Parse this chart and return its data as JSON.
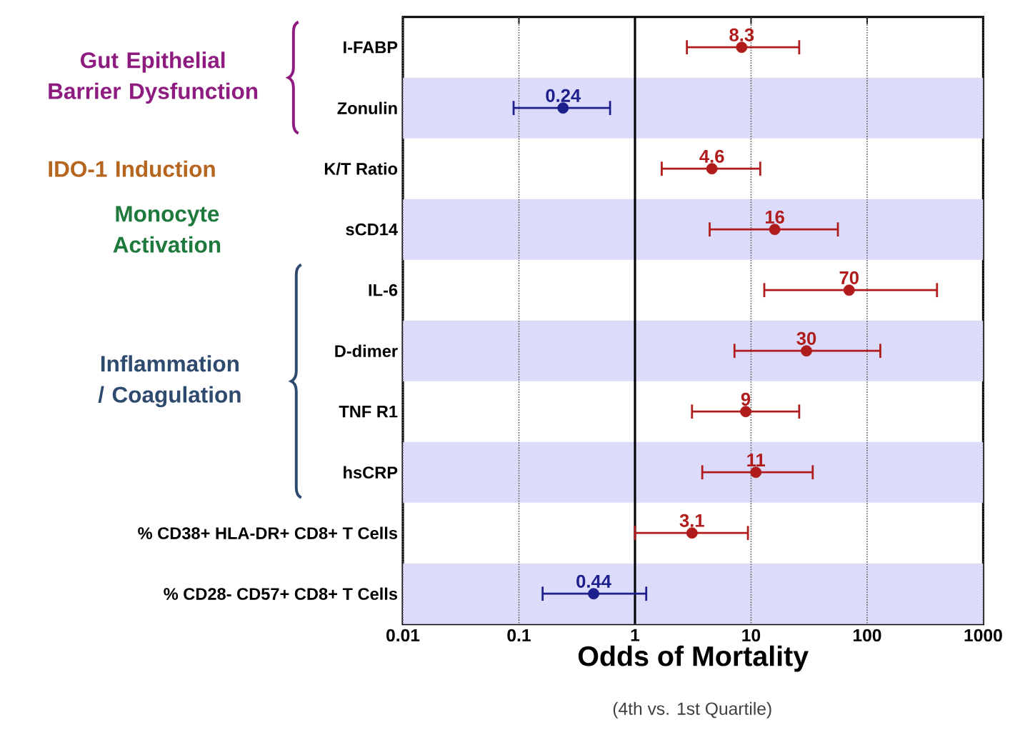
{
  "chart_data": {
    "type": "scatter",
    "categories": [
      "I-FABP",
      "Zonulin",
      "K/T Ratio",
      "sCD14",
      "IL-6",
      "D-dimer",
      "TNF R1",
      "hsCRP",
      "% CD38+ HLA-DR+ CD8+ T Cells",
      "% CD28- CD57+ CD8+ T Cells"
    ],
    "values": [
      8.3,
      0.24,
      4.6,
      16,
      70,
      30,
      9,
      11,
      3.1,
      0.44
    ],
    "errors": [
      [
        2.8,
        26
      ],
      [
        0.09,
        0.61
      ],
      [
        1.7,
        12
      ],
      [
        4.4,
        56
      ],
      [
        13,
        400
      ],
      [
        7.2,
        130
      ],
      [
        3.1,
        26
      ],
      [
        3.8,
        34
      ],
      [
        1.0,
        9.4
      ],
      [
        0.16,
        1.25
      ]
    ],
    "colors": [
      "#b01c1c",
      "#1c1f8c",
      "#b01c1c",
      "#b01c1c",
      "#b01c1c",
      "#b01c1c",
      "#b01c1c",
      "#b01c1c",
      "#b01c1c",
      "#1c1f8c"
    ],
    "orientation": "horizontal",
    "data_labels": true,
    "log": "x",
    "xlim": [
      0.01,
      1000
    ],
    "xticks": [
      0.01,
      0.1,
      1,
      10,
      100,
      1000
    ],
    "grid": "x",
    "xlabel": "Odds of Mortality",
    "annotations": [
      "Gut Epithelial Barrier Dysfunction",
      "IDO-1 Induction",
      "Monocyte Activation",
      "Inflammation / Coagulation",
      "(4th vs. 1st Quartile)"
    ],
    "ref_lines": [
      {
        "axis": "x",
        "value": 1,
        "color": "#000000"
      }
    ]
  }
}
